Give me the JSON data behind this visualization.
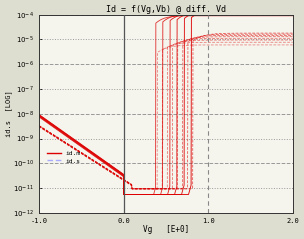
{
  "title": "Id = f(Vg,Vb) @ diff. Vd",
  "xlabel": "Vg   [E+0]",
  "ylabel": "id.s  [LOG]",
  "legend_label_m": "id.m",
  "legend_label_s": "id.s",
  "legend_color_m": "#dd0000",
  "legend_color_s": "#aaaaff",
  "xlim": [
    -1.0,
    2.0
  ],
  "ylim_log_min": -12,
  "ylim_log_max": -4,
  "xticks": [
    -1.0,
    0.0,
    1.0,
    2.0
  ],
  "yticks_exp": [
    -12,
    -11,
    -10,
    -9,
    -8,
    -7,
    -6,
    -5,
    -4
  ],
  "vline_x": 0.0,
  "vline2_x": 1.0,
  "bg_color": "#deded0",
  "plot_bg_color": "#f5f5ee",
  "grid_color_dotted": "#999999",
  "grid_color_dashed": "#777777",
  "curve_color": "#dd0000",
  "curve_color_light": "#ff8888",
  "n_curves": 10,
  "kT_q": 0.035,
  "ioff_floor": 1.1e-11,
  "ion_high": 0.00015,
  "ion_low": 8e-06
}
